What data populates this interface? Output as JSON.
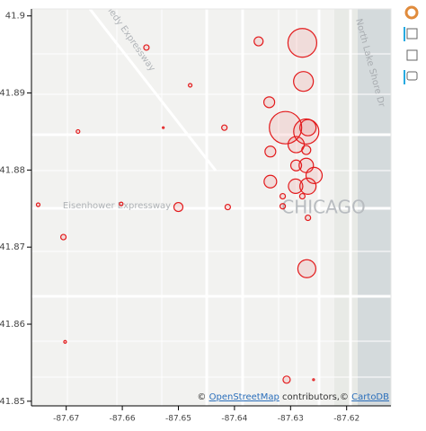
{
  "chart_data": {
    "type": "bubble",
    "map_labels": [
      "CHICAGO",
      "Eisenhower Expressway",
      "Kennedy Expressway",
      "North Lake Shore Dr"
    ],
    "attribution": [
      "© ",
      "OpenStreetMap",
      " contributors,© ",
      "CartoDB"
    ],
    "color": "#e31a1c",
    "x": [
      -87.6279,
      -87.6357,
      -87.6557,
      -87.6277,
      -87.6479,
      -87.6338,
      -87.6679,
      -87.6527,
      -87.6418,
      -87.6309,
      -87.6272,
      -87.6269,
      -87.629,
      -87.6336,
      -87.6272,
      -87.629,
      -87.6272,
      -87.6258,
      -87.6336,
      -87.6291,
      -87.6269,
      -87.6314,
      -87.6279,
      -87.6602,
      -87.65,
      -87.675,
      -87.6412,
      -87.6314,
      -87.6269,
      -87.6705,
      -87.6271,
      -87.6702,
      -87.6307,
      -87.6259
    ],
    "y": [
      41.8965,
      41.8967,
      41.8959,
      41.8915,
      41.891,
      41.8888,
      41.885,
      41.8855,
      41.8855,
      41.8855,
      41.885,
      41.8855,
      41.8833,
      41.8824,
      41.8826,
      41.8806,
      41.8806,
      41.8793,
      41.8785,
      41.8779,
      41.8779,
      41.8766,
      41.8766,
      41.8756,
      41.8752,
      41.8755,
      41.8752,
      41.8753,
      41.8738,
      41.8713,
      41.8672,
      41.8577,
      41.8528,
      41.8528
    ],
    "sizes": [
      16,
      5,
      3,
      11,
      2,
      6,
      2,
      1,
      3,
      18,
      14,
      9,
      9,
      6,
      5,
      6,
      8,
      9,
      7,
      8,
      9,
      3,
      3,
      2,
      5,
      2,
      3,
      3,
      3,
      3,
      10,
      1.5,
      4,
      1
    ],
    "xlim": [
      -87.6762,
      -87.6121
    ],
    "ylim": [
      41.8494,
      41.9009
    ],
    "xticks": [
      -87.67,
      -87.66,
      -87.65,
      -87.64,
      -87.63,
      -87.62
    ],
    "yticks": [
      41.9,
      41.89,
      41.88,
      41.87,
      41.86,
      41.85
    ]
  }
}
